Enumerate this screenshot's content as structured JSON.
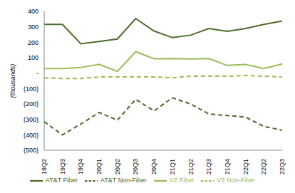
{
  "chart_data": {
    "type": "line",
    "y_label": "(thousands)",
    "categories": [
      "19Q2",
      "19Q3",
      "19Q4",
      "20Q1",
      "20Q2",
      "20Q3",
      "20Q4",
      "21Q1",
      "21Q2",
      "21Q3",
      "21Q4",
      "22Q1",
      "22Q2",
      "22Q3"
    ],
    "series": [
      {
        "name": "AT&T Fiber",
        "color": "#4f6b2c",
        "line_style": "solid",
        "values": [
          316,
          316,
          190,
          205,
          221,
          354,
          273,
          230,
          246,
          289,
          271,
          289,
          316,
          338
        ]
      },
      {
        "name": "AT&T Non-Fiber",
        "color": "#4f6b2c",
        "line_style": "dashed",
        "values": [
          -315,
          -400,
          -330,
          -255,
          -305,
          -170,
          -245,
          -160,
          -200,
          -265,
          -275,
          -285,
          -345,
          -370
        ]
      },
      {
        "name": "VZ Fiber",
        "color": "#9bbb59",
        "line_style": "solid",
        "values": [
          30,
          30,
          36,
          57,
          11,
          139,
          93,
          94,
          92,
          94,
          50,
          56,
          30,
          60
        ]
      },
      {
        "name": "VZ Non-Fiber",
        "color": "#9bbb59",
        "line_style": "dashed",
        "values": [
          -30,
          -35,
          -35,
          -25,
          -25,
          -25,
          -25,
          -30,
          -20,
          -20,
          -20,
          -15,
          -20,
          -25
        ]
      }
    ],
    "ylim": [
      -500,
      400
    ],
    "yticks": [
      {
        "value": -500,
        "label": "(500)"
      },
      {
        "value": -400,
        "label": "(400)"
      },
      {
        "value": -300,
        "label": "(300)"
      },
      {
        "value": -200,
        "label": "(200)"
      },
      {
        "value": -100,
        "label": "(100)"
      },
      {
        "value": 0,
        "label": "-"
      },
      100,
      200,
      300,
      400
    ],
    "legend": "bottom",
    "grid": false
  }
}
